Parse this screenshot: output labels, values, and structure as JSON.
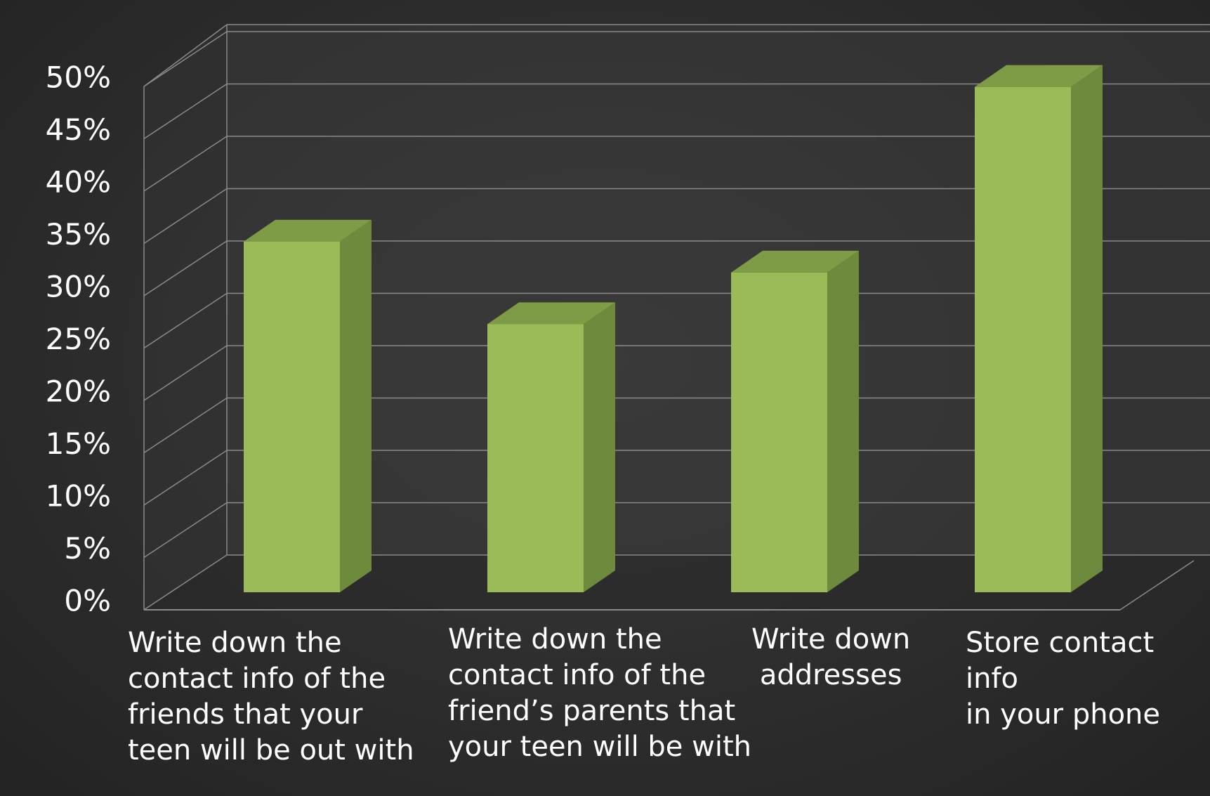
{
  "chart_data": {
    "type": "bar",
    "categories": [
      "Write down the\ncontact info of the\nfriends that your\nteen will be out with",
      "Write down the\ncontact info of the\nfriend’s parents that\nyour teen will be with",
      "Write down\naddresses",
      "Store contact info\nin your phone"
    ],
    "values": [
      34,
      26,
      31,
      49
    ],
    "ylim": [
      0,
      50
    ],
    "yticks": [
      "0%",
      "5%",
      "10%",
      "15%",
      "20%",
      "25%",
      "30%",
      "35%",
      "40%",
      "45%",
      "50%"
    ],
    "grid": true,
    "legend": "none",
    "title": "",
    "xlabel": "",
    "ylabel": "",
    "colors": {
      "bar_front": "#9bbb59",
      "bar_side": "#6e8a3c",
      "bar_top": "#7e9c45",
      "grid": "#8a8a8a",
      "text": "#ffffff"
    }
  }
}
